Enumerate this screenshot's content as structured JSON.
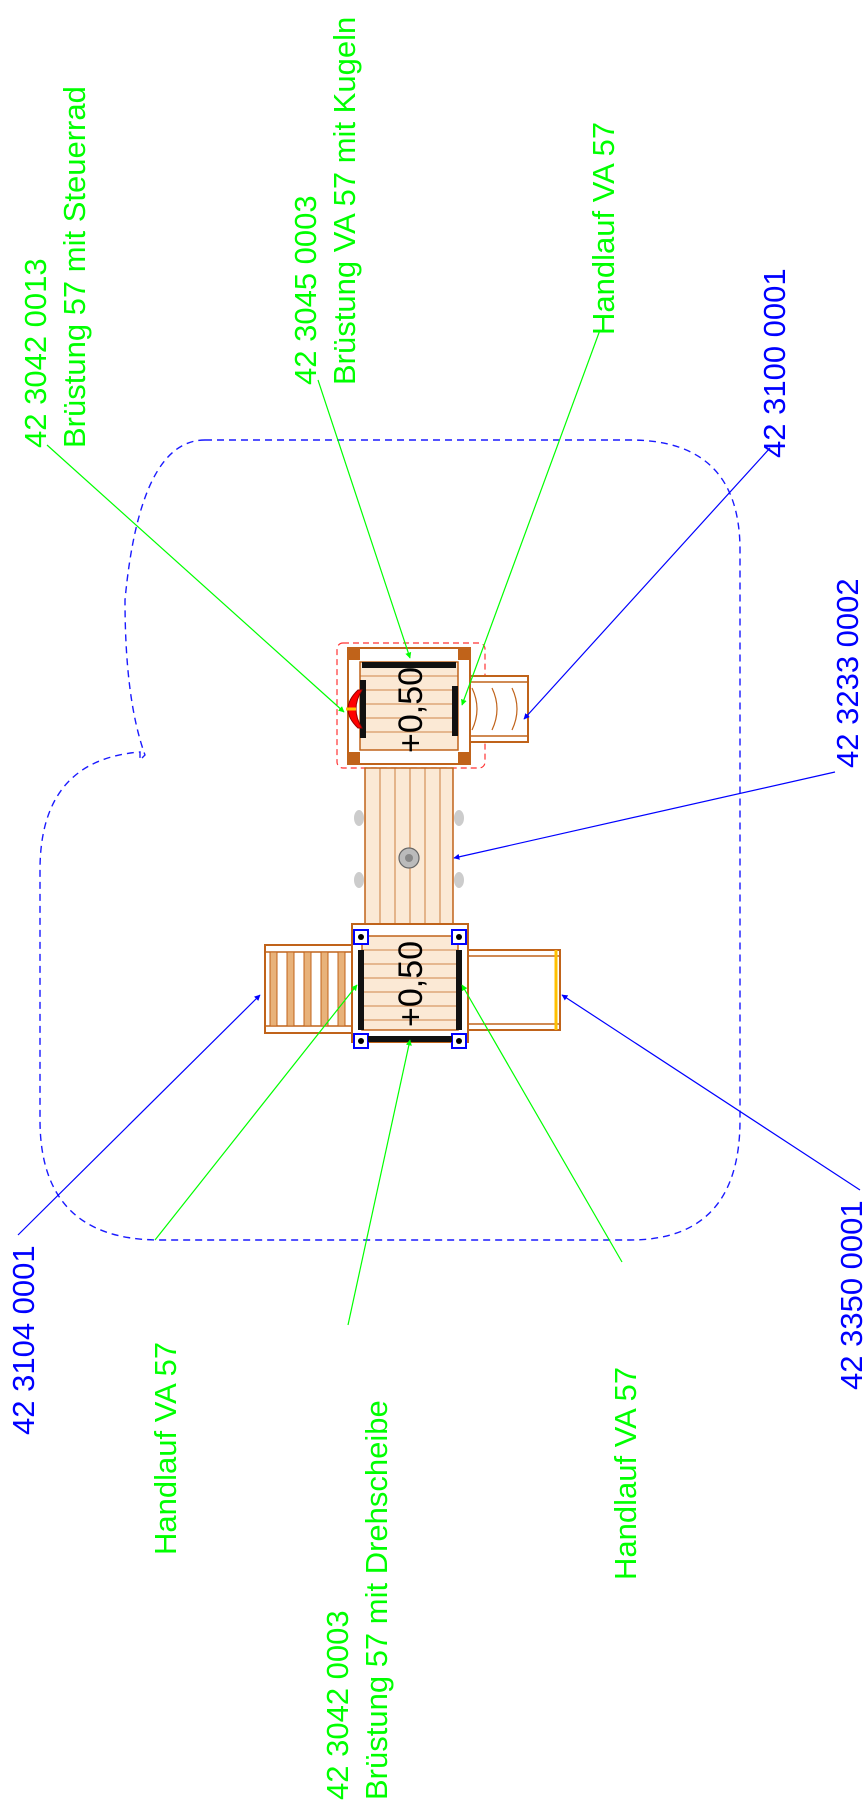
{
  "colors": {
    "accessory_label": "#00ff00",
    "component_label": "#0000ff",
    "safety_zone": "#0000cc",
    "timber": "#c0631a",
    "timber_light": "#e8b27a",
    "handrail": "#000000",
    "steering_wheel": "#ff0000",
    "yellow_edge": "#ffc000"
  },
  "labels": {
    "bruestung_steuerrad": {
      "code": "42 3042 0013",
      "text": "Brüstung 57 mit Steuerrad"
    },
    "bruestung_kugeln": {
      "code": "42 3045 0003",
      "text": "Brüstung VA 57 mit Kugeln"
    },
    "handlauf_top": {
      "text": "Handlauf VA 57"
    },
    "comp_3100": {
      "code": "42 3100 0001"
    },
    "comp_3233": {
      "code": "42 3233 0002"
    },
    "comp_3104": {
      "code": "42 3104 0001"
    },
    "handlauf_left": {
      "text": "Handlauf VA 57"
    },
    "bruestung_drehscheibe": {
      "code": "42 3042 0003",
      "text": "Brüstung 57 mit Drehscheibe"
    },
    "handlauf_right": {
      "text": "Handlauf VA 57"
    },
    "comp_3350": {
      "code": "42 3350 0001"
    }
  },
  "platforms": {
    "upper": {
      "height": "+0,50"
    },
    "lower": {
      "height": "+0,50"
    }
  }
}
